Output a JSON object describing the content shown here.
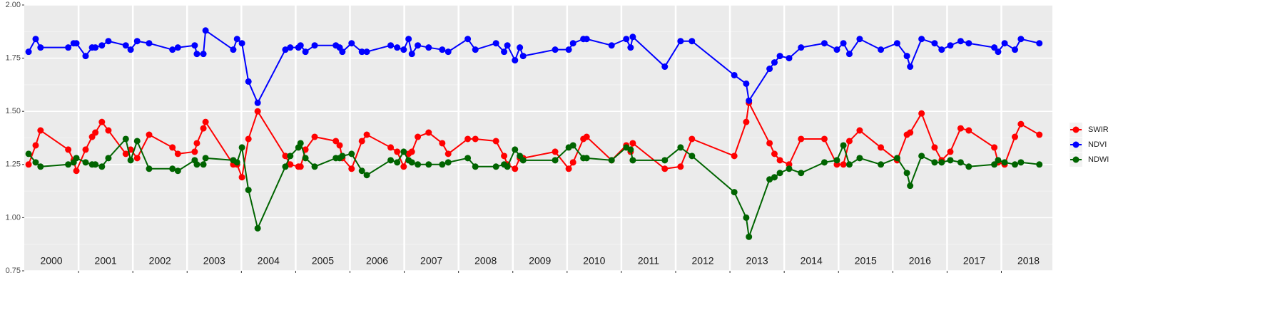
{
  "chart_data": {
    "type": "line",
    "x": [
      2000.08,
      2000.21,
      2000.3,
      2000.81,
      2000.91,
      2000.96,
      2001.13,
      2001.25,
      2001.31,
      2001.43,
      2001.55,
      2001.87,
      2001.96,
      2002.08,
      2002.3,
      2002.73,
      2002.83,
      2003.14,
      2003.18,
      2003.3,
      2003.34,
      2003.85,
      2003.92,
      2004.01,
      2004.13,
      2004.3,
      2004.81,
      2004.9,
      2005.05,
      2005.09,
      2005.18,
      2005.35,
      2005.74,
      2005.81,
      2005.86,
      2006.03,
      2006.22,
      2006.31,
      2006.75,
      2006.87,
      2006.99,
      2007.08,
      2007.14,
      2007.25,
      2007.45,
      2007.7,
      2007.81,
      2008.17,
      2008.31,
      2008.69,
      2008.84,
      2008.9,
      2009.04,
      2009.13,
      2009.19,
      2009.78,
      2010.03,
      2010.11,
      2010.3,
      2010.36,
      2010.82,
      2011.09,
      2011.17,
      2011.21,
      2011.8,
      2012.09,
      2012.3,
      2013.08,
      2013.3,
      2013.35,
      2013.73,
      2013.82,
      2013.92,
      2014.09,
      2014.31,
      2014.74,
      2014.97,
      2015.09,
      2015.2,
      2015.39,
      2015.78,
      2016.08,
      2016.26,
      2016.32,
      2016.53,
      2016.77,
      2016.9,
      2017.06,
      2017.25,
      2017.4,
      2017.87,
      2017.94,
      2018.06,
      2018.25,
      2018.36,
      2018.7
    ],
    "series": [
      {
        "name": "SWIR",
        "color": "#ff0000",
        "values": [
          1.25,
          1.34,
          1.41,
          1.32,
          1.27,
          1.22,
          1.32,
          1.38,
          1.4,
          1.45,
          1.41,
          1.3,
          1.32,
          1.28,
          1.39,
          1.33,
          1.3,
          1.31,
          1.35,
          1.42,
          1.45,
          1.25,
          1.25,
          1.19,
          1.37,
          1.5,
          1.29,
          1.25,
          1.24,
          1.24,
          1.32,
          1.38,
          1.36,
          1.34,
          1.28,
          1.23,
          1.36,
          1.39,
          1.33,
          1.31,
          1.24,
          1.3,
          1.31,
          1.38,
          1.4,
          1.35,
          1.3,
          1.37,
          1.37,
          1.36,
          1.29,
          1.25,
          1.23,
          1.28,
          1.28,
          1.31,
          1.23,
          1.26,
          1.37,
          1.38,
          1.27,
          1.34,
          1.31,
          1.35,
          1.23,
          1.24,
          1.37,
          1.29,
          1.45,
          1.54,
          1.35,
          1.3,
          1.27,
          1.25,
          1.37,
          1.37,
          1.25,
          1.25,
          1.36,
          1.41,
          1.33,
          1.27,
          1.39,
          1.4,
          1.49,
          1.33,
          1.27,
          1.31,
          1.42,
          1.41,
          1.33,
          1.26,
          1.25,
          1.38,
          1.44,
          1.39
        ]
      },
      {
        "name": "NDVI",
        "color": "#0000ff",
        "values": [
          1.78,
          1.84,
          1.8,
          1.8,
          1.82,
          1.82,
          1.76,
          1.8,
          1.8,
          1.81,
          1.83,
          1.81,
          1.79,
          1.83,
          1.82,
          1.79,
          1.8,
          1.81,
          1.77,
          1.77,
          1.88,
          1.79,
          1.84,
          1.82,
          1.64,
          1.54,
          1.79,
          1.8,
          1.8,
          1.81,
          1.78,
          1.81,
          1.81,
          1.8,
          1.78,
          1.82,
          1.78,
          1.78,
          1.81,
          1.8,
          1.79,
          1.84,
          1.77,
          1.81,
          1.8,
          1.79,
          1.78,
          1.84,
          1.79,
          1.82,
          1.78,
          1.81,
          1.74,
          1.8,
          1.76,
          1.79,
          1.79,
          1.82,
          1.84,
          1.84,
          1.81,
          1.84,
          1.8,
          1.85,
          1.71,
          1.83,
          1.83,
          1.67,
          1.63,
          1.55,
          1.7,
          1.73,
          1.76,
          1.75,
          1.8,
          1.82,
          1.79,
          1.82,
          1.77,
          1.84,
          1.79,
          1.82,
          1.76,
          1.71,
          1.84,
          1.82,
          1.79,
          1.81,
          1.83,
          1.82,
          1.8,
          1.78,
          1.82,
          1.79,
          1.84,
          1.82
        ]
      },
      {
        "name": "NDWI",
        "color": "#006400",
        "values": [
          1.3,
          1.26,
          1.24,
          1.25,
          1.26,
          1.28,
          1.26,
          1.25,
          1.25,
          1.24,
          1.28,
          1.37,
          1.27,
          1.36,
          1.23,
          1.23,
          1.22,
          1.27,
          1.25,
          1.25,
          1.28,
          1.27,
          1.26,
          1.33,
          1.13,
          0.95,
          1.24,
          1.29,
          1.33,
          1.35,
          1.28,
          1.24,
          1.28,
          1.28,
          1.29,
          1.3,
          1.22,
          1.2,
          1.27,
          1.26,
          1.31,
          1.27,
          1.26,
          1.25,
          1.25,
          1.25,
          1.26,
          1.28,
          1.24,
          1.24,
          1.25,
          1.24,
          1.32,
          1.29,
          1.27,
          1.27,
          1.33,
          1.34,
          1.28,
          1.28,
          1.27,
          1.33,
          1.32,
          1.27,
          1.27,
          1.33,
          1.29,
          1.12,
          1.0,
          0.91,
          1.18,
          1.19,
          1.21,
          1.23,
          1.21,
          1.26,
          1.27,
          1.34,
          1.25,
          1.28,
          1.25,
          1.28,
          1.21,
          1.15,
          1.29,
          1.26,
          1.26,
          1.27,
          1.26,
          1.24,
          1.25,
          1.27,
          1.26,
          1.25,
          1.26,
          1.25
        ]
      }
    ],
    "xlim": [
      2000,
      2018.94
    ],
    "xticks": [
      {
        "value": 2000.5,
        "label": "2000"
      },
      {
        "value": 2001.5,
        "label": "2001"
      },
      {
        "value": 2002.5,
        "label": "2002"
      },
      {
        "value": 2003.5,
        "label": "2003"
      },
      {
        "value": 2004.5,
        "label": "2004"
      },
      {
        "value": 2005.5,
        "label": "2005"
      },
      {
        "value": 2006.5,
        "label": "2006"
      },
      {
        "value": 2007.5,
        "label": "2007"
      },
      {
        "value": 2008.5,
        "label": "2008"
      },
      {
        "value": 2009.5,
        "label": "2009"
      },
      {
        "value": 2010.5,
        "label": "2010"
      },
      {
        "value": 2011.5,
        "label": "2011"
      },
      {
        "value": 2012.5,
        "label": "2012"
      },
      {
        "value": 2013.5,
        "label": "2013"
      },
      {
        "value": 2014.5,
        "label": "2014"
      },
      {
        "value": 2015.5,
        "label": "2015"
      },
      {
        "value": 2016.5,
        "label": "2016"
      },
      {
        "value": 2017.5,
        "label": "2017"
      },
      {
        "value": 2018.5,
        "label": "2018"
      }
    ],
    "ylim": [
      0.75,
      2.0
    ],
    "yticks": [
      {
        "value": 0.75,
        "label": "0.75"
      },
      {
        "value": 1.0,
        "label": "1.00"
      },
      {
        "value": 1.25,
        "label": "1.25"
      },
      {
        "value": 1.5,
        "label": "1.50"
      },
      {
        "value": 1.75,
        "label": "1.75"
      },
      {
        "value": 2.0,
        "label": "2.00"
      }
    ],
    "grid": true,
    "legend": "right"
  }
}
